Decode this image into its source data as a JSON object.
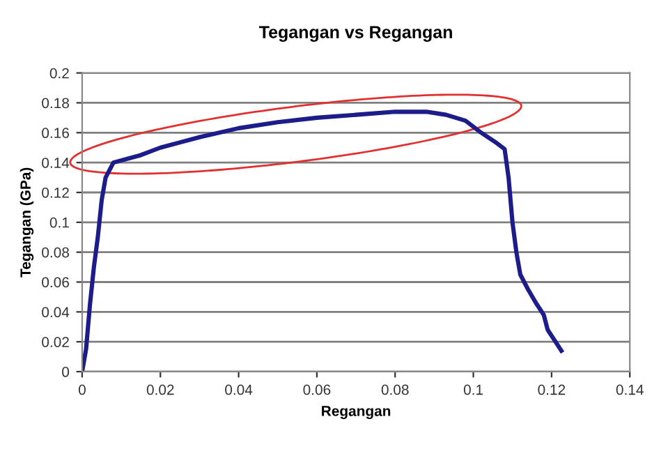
{
  "chart_data": {
    "type": "line",
    "title": "Tegangan vs Regangan",
    "xlabel": "Regangan",
    "ylabel": "Tegangan (GPa)",
    "x": [
      0,
      0.001,
      0.002,
      0.003,
      0.004,
      0.005,
      0.006,
      0.008,
      0.015,
      0.02,
      0.03,
      0.04,
      0.05,
      0.06,
      0.07,
      0.08,
      0.088,
      0.093,
      0.098,
      0.102,
      0.106,
      0.108,
      0.109,
      0.11,
      0.111,
      0.112,
      0.114,
      0.116,
      0.118,
      0.119,
      0.121,
      0.1225
    ],
    "series": [
      {
        "color": "#1c1c8a",
        "values": [
          0,
          0.015,
          0.045,
          0.07,
          0.09,
          0.115,
          0.13,
          0.14,
          0.145,
          0.15,
          0.157,
          0.163,
          0.167,
          0.17,
          0.172,
          0.174,
          0.174,
          0.172,
          0.168,
          0.16,
          0.153,
          0.149,
          0.13,
          0.1,
          0.08,
          0.065,
          0.055,
          0.046,
          0.038,
          0.028,
          0.02,
          0.014
        ]
      }
    ],
    "xlim": [
      0,
      0.14
    ],
    "xticks": [
      0,
      0.02,
      0.04,
      0.06,
      0.08,
      0.1,
      0.12,
      0.14
    ],
    "ylim": [
      0,
      0.2
    ],
    "yticks": [
      0,
      0.02,
      0.04,
      0.06,
      0.08,
      0.1,
      0.12,
      0.14,
      0.16,
      0.18,
      0.2
    ],
    "grid": "y",
    "line_style": "solid",
    "legend": false
  }
}
